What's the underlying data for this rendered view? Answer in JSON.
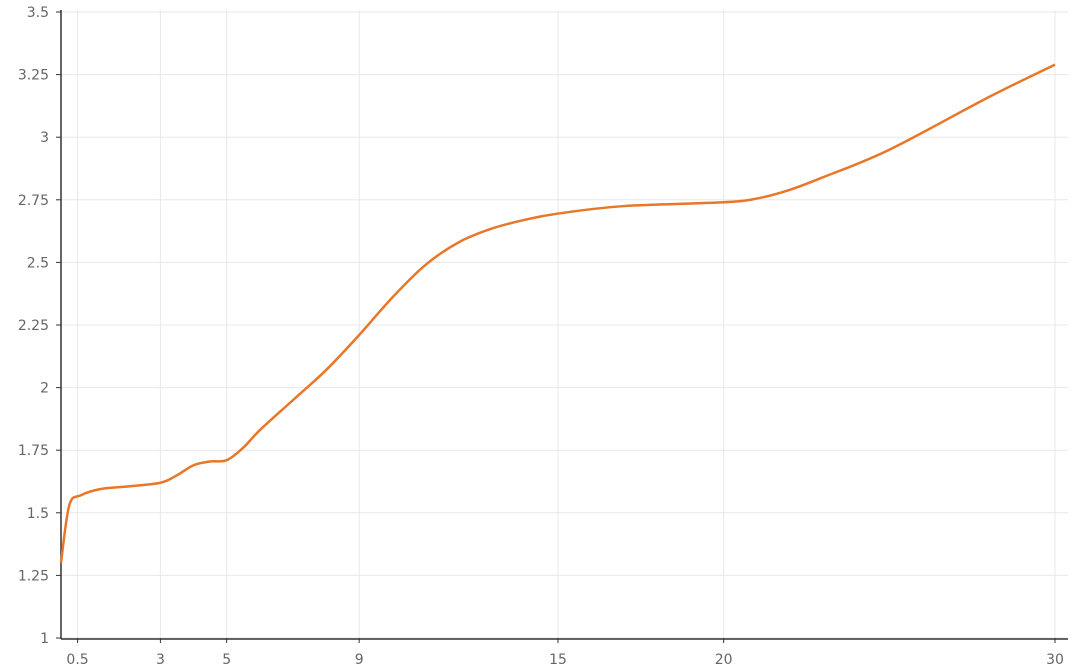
{
  "chart_data": {
    "type": "line",
    "title": "",
    "xlabel": "",
    "ylabel": "",
    "xlim": [
      0,
      30
    ],
    "ylim": [
      1,
      3.5
    ],
    "x_ticks": [
      0.5,
      3,
      5,
      9,
      15,
      20,
      30
    ],
    "x_tick_labels": [
      "0.5",
      "3",
      "5",
      "9",
      "15",
      "20",
      "30"
    ],
    "y_ticks": [
      1,
      1.25,
      1.5,
      1.75,
      2,
      2.25,
      2.5,
      2.75,
      3,
      3.25,
      3.5
    ],
    "y_tick_labels": [
      "1",
      "1.25",
      "1.5",
      "1.75",
      "2",
      "2.25",
      "2.5",
      "2.75",
      "3",
      "3.25",
      "3.5"
    ],
    "grid": true,
    "series": [
      {
        "color": "#e8772a",
        "x": [
          0,
          0.25,
          0.6,
          1.2,
          2,
          3,
          3.5,
          4,
          4.5,
          5,
          5.5,
          6,
          7,
          8,
          9,
          10,
          11,
          12,
          13,
          14,
          15,
          17,
          20,
          21,
          22,
          23,
          25,
          28,
          30
        ],
        "y": [
          1.3,
          1.53,
          1.57,
          1.595,
          1.605,
          1.62,
          1.65,
          1.69,
          1.705,
          1.71,
          1.76,
          1.83,
          1.95,
          2.07,
          2.21,
          2.36,
          2.49,
          2.58,
          2.635,
          2.67,
          2.695,
          2.725,
          2.74,
          2.755,
          2.79,
          2.84,
          2.95,
          3.16,
          3.29
        ]
      }
    ]
  }
}
